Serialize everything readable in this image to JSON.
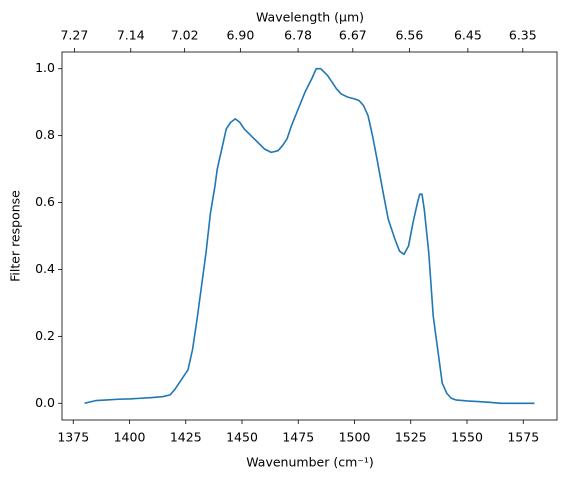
{
  "chart_data": {
    "type": "line",
    "xlabel": "Wavenumber (cm⁻¹)",
    "ylabel": "Filter response",
    "x2label": "Wavelength (μm)",
    "x2_scale": "reciprocal",
    "color": "#1f77b4",
    "xlim": [
      1370,
      1590
    ],
    "ylim": [
      -0.05,
      1.05
    ],
    "xticks": [
      1375,
      1400,
      1425,
      1450,
      1475,
      1500,
      1525,
      1550,
      1575
    ],
    "yticks": [
      {
        "value": 0,
        "label": "0.0"
      },
      0.2,
      0.4,
      0.6,
      0.8,
      {
        "value": 1,
        "label": "1.0"
      }
    ],
    "x2ticks": [
      7.27,
      7.14,
      7.02,
      {
        "value": 6.9,
        "label": "6.90"
      },
      6.78,
      6.67,
      6.56,
      6.45,
      6.35
    ],
    "x": [
      1380,
      1385,
      1390,
      1395,
      1400,
      1405,
      1410,
      1415,
      1418,
      1420,
      1423,
      1426,
      1428,
      1430,
      1432,
      1434,
      1436,
      1438,
      1439,
      1441,
      1443,
      1445,
      1447,
      1449,
      1451,
      1454,
      1457,
      1460,
      1463,
      1466,
      1468,
      1470,
      1472,
      1475,
      1478,
      1481,
      1483,
      1485,
      1488,
      1490,
      1492,
      1494,
      1497,
      1500,
      1502,
      1504,
      1506,
      1508,
      1510,
      1513,
      1515,
      1518,
      1520,
      1522,
      1524,
      1526,
      1528,
      1529,
      1530,
      1531,
      1533,
      1535,
      1537,
      1539,
      1541,
      1543,
      1545,
      1550,
      1555,
      1560,
      1565,
      1570,
      1575,
      1580
    ],
    "values": [
      0,
      0.008,
      0.01,
      0.012,
      0.013,
      0.015,
      0.017,
      0.02,
      0.025,
      0.04,
      0.07,
      0.1,
      0.16,
      0.25,
      0.35,
      0.45,
      0.57,
      0.65,
      0.7,
      0.76,
      0.82,
      0.84,
      0.85,
      0.84,
      0.82,
      0.8,
      0.78,
      0.76,
      0.75,
      0.755,
      0.77,
      0.79,
      0.83,
      0.88,
      0.93,
      0.97,
      1,
      1,
      0.98,
      0.96,
      0.94,
      0.925,
      0.915,
      0.91,
      0.905,
      0.89,
      0.86,
      0.8,
      0.73,
      0.62,
      0.55,
      0.49,
      0.455,
      0.445,
      0.47,
      0.54,
      0.6,
      0.625,
      0.625,
      0.58,
      0.45,
      0.26,
      0.16,
      0.06,
      0.03,
      0.015,
      0.01,
      0.007,
      0.005,
      0.003,
      0,
      0,
      0,
      0
    ]
  }
}
